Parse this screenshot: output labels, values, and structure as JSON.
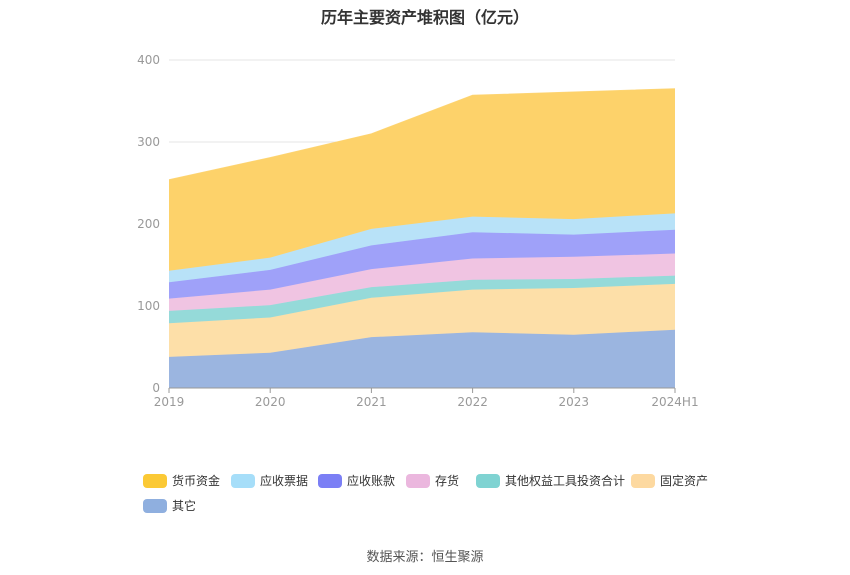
{
  "title": "历年主要资产堆积图（亿元）",
  "source": "数据来源：恒生聚源",
  "chart_data": {
    "type": "area",
    "stacked": true,
    "x": [
      "2019",
      "2020",
      "2021",
      "2022",
      "2023",
      "2024H1"
    ],
    "ylim": [
      0,
      400
    ],
    "yticks": [
      0,
      100,
      200,
      300,
      400
    ],
    "grid": true,
    "legend_position": "bottom-left",
    "series": [
      {
        "name": "其它",
        "color": "#9bb5e0",
        "values": [
          38,
          43,
          62,
          68,
          65,
          71
        ]
      },
      {
        "name": "固定资产",
        "color": "#fddfa8",
        "values": [
          41,
          43,
          48,
          52,
          57,
          56
        ]
      },
      {
        "name": "其他权益工具投资合计",
        "color": "#95dad9",
        "values": [
          15,
          15,
          13,
          12,
          11,
          10
        ]
      },
      {
        "name": "存货",
        "color": "#f0c4e2",
        "values": [
          15,
          19,
          22,
          26,
          27,
          27
        ]
      },
      {
        "name": "应收账款",
        "color": "#9fa1f9",
        "values": [
          20,
          24,
          29,
          32,
          27,
          29
        ]
      },
      {
        "name": "应收票据",
        "color": "#b8e2f8",
        "values": [
          14,
          15,
          20,
          19,
          19,
          20
        ]
      },
      {
        "name": "货币资金",
        "color": "#fdd26a",
        "values": [
          111,
          122,
          116,
          148,
          155,
          152
        ]
      }
    ]
  },
  "legend": [
    {
      "label": "货币资金",
      "color": "#fbc935"
    },
    {
      "label": "应收票据",
      "color": "#a6def9"
    },
    {
      "label": "应收账款",
      "color": "#7b7ff5"
    },
    {
      "label": "存货",
      "color": "#ebb7de"
    },
    {
      "label": "其他权益工具投资合计",
      "color": "#7fd3d2"
    },
    {
      "label": "固定资产",
      "color": "#fdd9a0"
    },
    {
      "label": "其它",
      "color": "#8fafdf"
    }
  ]
}
